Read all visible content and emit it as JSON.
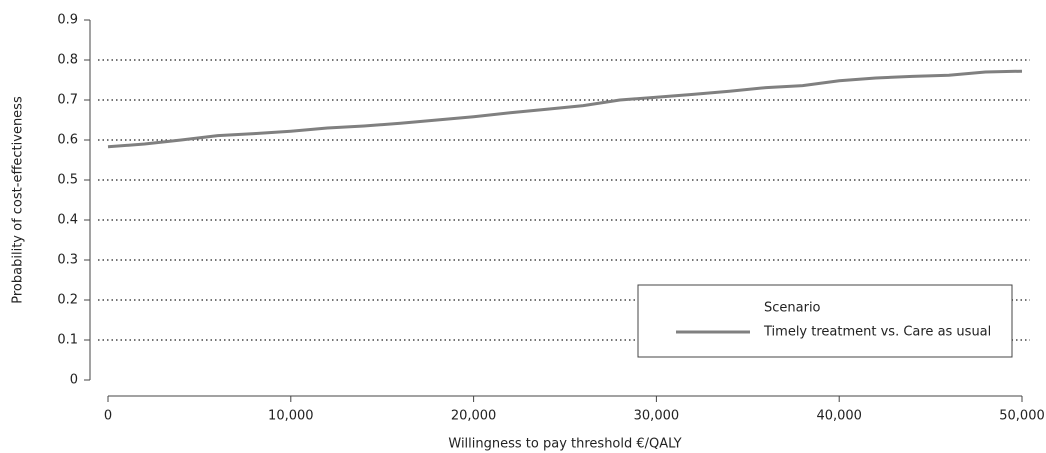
{
  "chart_data": {
    "type": "line",
    "x_label": "Willingness to pay threshold €/QALY",
    "y_label": "Probability of cost-effectiveness",
    "x": [
      0,
      2000,
      4000,
      6000,
      8000,
      10000,
      12000,
      14000,
      16000,
      18000,
      20000,
      22000,
      24000,
      26000,
      28000,
      30000,
      32000,
      34000,
      36000,
      38000,
      40000,
      42000,
      44000,
      46000,
      48000,
      50000
    ],
    "series": [
      {
        "name": "Timely treatment vs. Care as usual",
        "color": "#808080",
        "values": [
          0.583,
          0.59,
          0.6,
          0.611,
          0.616,
          0.622,
          0.63,
          0.635,
          0.642,
          0.65,
          0.658,
          0.668,
          0.677,
          0.686,
          0.7,
          0.707,
          0.714,
          0.722,
          0.731,
          0.736,
          0.748,
          0.755,
          0.759,
          0.762,
          0.77,
          0.772
        ]
      }
    ],
    "legend_title": "Scenario",
    "legend_position": "lower right",
    "xlim": [
      0,
      50000
    ],
    "xticks": [
      0,
      {
        "value": 10000,
        "label": "10,000"
      },
      {
        "value": 20000,
        "label": "20,000"
      },
      {
        "value": 30000,
        "label": "30,000"
      },
      {
        "value": 40000,
        "label": "40,000"
      },
      {
        "value": 50000,
        "label": "50,000"
      }
    ],
    "ylim": [
      0,
      0.9
    ],
    "yticks": [
      0,
      0.1,
      0.2,
      0.3,
      0.4,
      0.5,
      0.6,
      0.7,
      0.8,
      0.9
    ],
    "grid": true
  }
}
